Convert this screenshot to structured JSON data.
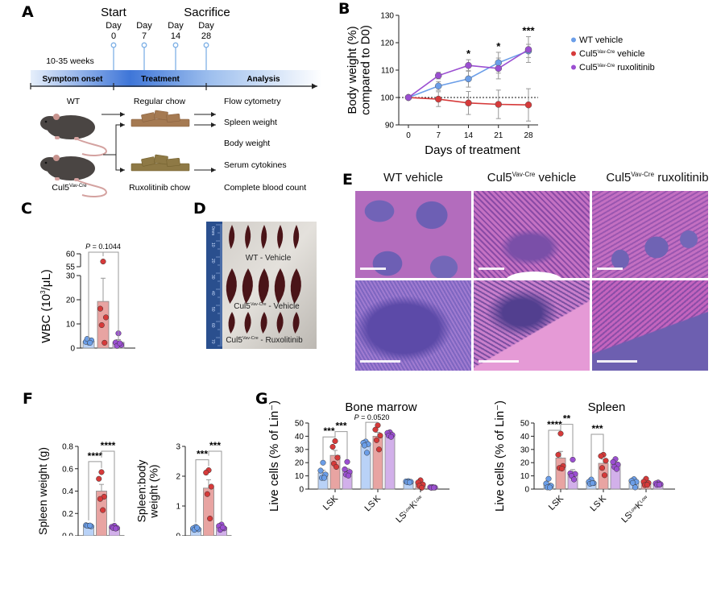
{
  "panels": {
    "A": {
      "label": "A",
      "start_label": "Start",
      "sacrifice_label": "Sacrifice",
      "days": [
        {
          "word": "Day",
          "num": "0"
        },
        {
          "word": "Day",
          "num": "7"
        },
        {
          "word": "Day",
          "num": "14"
        },
        {
          "word": "Day",
          "num": "28"
        }
      ],
      "age_label": "10-35 weeks",
      "phases": [
        "Symptom onset",
        "Treatment",
        "Analysis"
      ],
      "mouse_wt": "WT",
      "mouse_ko": "Cul5",
      "mouse_ko_sup": "Vav-Cre",
      "chow_regular": "Regular chow",
      "chow_rux": "Ruxolitinib chow",
      "analyses": [
        "Flow cytometry",
        "Spleen weight",
        "Body weight",
        "Serum cytokines",
        "Complete blood count"
      ],
      "colors": {
        "timeline_dark": "#3d73d6",
        "timeline_light": "#eaf1fc",
        "pin": "#7fb1e6",
        "mouse": "#4a4543",
        "tail": "#d4a2a0",
        "chow_regular": "#a57a52",
        "chow_rux": "#8e7945"
      }
    },
    "B": {
      "label": "B"
    },
    "C": {
      "label": "C"
    },
    "D": {
      "label": "D",
      "captions": [
        {
          "main": "WT - Vehicle",
          "sup": ""
        },
        {
          "main": "Cul5",
          "sup": "Vav-Cre",
          "rest": " - Vehicle"
        },
        {
          "main": "Cul5",
          "sup": "Vav-Cre",
          "rest": " - Ruxolitinib"
        }
      ],
      "ruler_ticks": [
        "0mm",
        "10",
        "20",
        "30",
        "40",
        "50",
        "60",
        "70"
      ]
    },
    "E": {
      "label": "E",
      "columns": [
        {
          "main": "WT vehicle",
          "sup": "",
          "rest": ""
        },
        {
          "main": "Cul5",
          "sup": "Vav-Cre",
          "rest": " vehicle"
        },
        {
          "main": "Cul5",
          "sup": "Vav-Cre",
          "rest": " ruxolitinib"
        }
      ]
    },
    "F": {
      "label": "F"
    },
    "G": {
      "label": "G",
      "titles": [
        "Bone marrow",
        "Spleen"
      ]
    }
  },
  "colors": {
    "wt": "#6b9ee8",
    "wt_bar": "#b9d2f7",
    "ko": "#d63a3a",
    "ko_bar": "#e8a4a2",
    "rux": "#9b4fd1",
    "rux_bar": "#d2b0ea",
    "errbar": "#999999"
  },
  "chart_data": [
    {
      "id": "B",
      "type": "line",
      "title": "",
      "xlabel": "Days of treatment",
      "ylabel": "Body weight (%) compared to D0)",
      "ylabel_lines": [
        "Body weight (%)",
        "compared to D0)"
      ],
      "x": [
        0,
        7,
        14,
        21,
        28
      ],
      "xticks": [
        "0",
        "7",
        "14",
        "21",
        "28"
      ],
      "ylim": [
        90,
        130
      ],
      "yticks": [
        90,
        100,
        110,
        120,
        130
      ],
      "reference_line": 100,
      "legend_position": "right",
      "series": [
        {
          "name": "WT vehicle",
          "name_main": "WT vehicle",
          "sup": "",
          "rest": "",
          "color_key": "wt",
          "values": [
            100,
            104.2,
            106.8,
            112.7,
            117.0
          ],
          "err": [
            0,
            1.6,
            3.0,
            3.8,
            2.4
          ]
        },
        {
          "name": "Cul5Vav-Cre vehicle",
          "name_main": "Cul5",
          "sup": "Vav-Cre",
          "rest": " vehicle",
          "color_key": "ko",
          "values": [
            100,
            99.4,
            98.0,
            97.5,
            97.3
          ],
          "err": [
            0,
            2.7,
            4.2,
            5.2,
            5.9
          ]
        },
        {
          "name": "Cul5Vav-Cre ruxolitinib",
          "name_main": "Cul5",
          "sup": "Vav-Cre",
          "rest": " ruxolitinib",
          "color_key": "rux",
          "values": [
            100,
            108.0,
            111.7,
            110.6,
            117.5
          ],
          "err": [
            0,
            1.2,
            2.1,
            3.8,
            4.7
          ]
        }
      ],
      "annotations": [
        {
          "x": 14,
          "text": "*"
        },
        {
          "x": 21,
          "text": "*"
        },
        {
          "x": 28,
          "text": "***"
        }
      ]
    },
    {
      "id": "C",
      "type": "bar",
      "ylabel": "WBC (10³/μL)",
      "ylabel_parts": {
        "pre": "WBC (10",
        "sup": "3",
        "post": "/μL)"
      },
      "ylim": [
        0,
        60
      ],
      "axis_break": [
        30,
        55
      ],
      "yticks": [
        0,
        10,
        20,
        30,
        55,
        60
      ],
      "categories": [
        "WT vehicle",
        "Cul5Vav-Cre vehicle",
        "Cul5Vav-Cre ruxolitinib"
      ],
      "bars": [
        {
          "color_key": "wt",
          "mean": 2.8,
          "err": 0.5,
          "points": [
            2.3,
            2.6,
            3.2,
            3.8,
            2.2
          ]
        },
        {
          "color_key": "ko",
          "mean": 19.3,
          "err": 9.6,
          "points": [
            57,
            16.3,
            12.7,
            9.5,
            2.2
          ]
        },
        {
          "color_key": "rux",
          "mean": 2.4,
          "err": 1.1,
          "points": [
            6.1,
            2.3,
            1.3,
            0.9,
            2.0
          ]
        }
      ],
      "annotations": [
        {
          "from": 0,
          "to": 2,
          "mid": 1,
          "text": "P = 0.1044"
        }
      ]
    },
    {
      "id": "F1",
      "type": "bar",
      "ylabel": "Spleen weight (g)",
      "ylim": [
        0,
        0.8
      ],
      "yticks": [
        "0.0",
        "0.2",
        "0.4",
        "0.6",
        "0.8"
      ],
      "categories": [
        "WT vehicle",
        "Cul5Vav-Cre vehicle",
        "Cul5Vav-Cre ruxolitinib"
      ],
      "bars": [
        {
          "color_key": "wt",
          "mean": 0.09,
          "err": 0.005,
          "points": [
            0.09,
            0.095,
            0.085,
            0.09,
            0.092
          ]
        },
        {
          "color_key": "ko",
          "mean": 0.4,
          "err": 0.06,
          "points": [
            0.57,
            0.51,
            0.35,
            0.33,
            0.23
          ]
        },
        {
          "color_key": "rux",
          "mean": 0.075,
          "err": 0.006,
          "points": [
            0.09,
            0.08,
            0.07,
            0.07,
            0.065
          ]
        }
      ],
      "annotations": [
        {
          "from": 0,
          "to": 1,
          "text": "****"
        },
        {
          "from": 1,
          "to": 2,
          "text": "****"
        }
      ]
    },
    {
      "id": "F2",
      "type": "bar",
      "ylabel": "Spleen:body weight (%)",
      "ylabel_lines": [
        "Spleen:body",
        "weight (%)"
      ],
      "ylim": [
        0,
        3
      ],
      "yticks": [
        "0",
        "1",
        "2",
        "3"
      ],
      "categories": [
        "WT vehicle",
        "Cul5Vav-Cre vehicle",
        "Cul5Vav-Cre ruxolitinib"
      ],
      "bars": [
        {
          "color_key": "wt",
          "mean": 0.25,
          "err": 0.03,
          "points": [
            0.3,
            0.25,
            0.22,
            0.2,
            0.27
          ]
        },
        {
          "color_key": "ko",
          "mean": 1.6,
          "err": 0.28,
          "points": [
            2.2,
            2.12,
            1.65,
            1.4,
            0.58
          ]
        },
        {
          "color_key": "rux",
          "mean": 0.28,
          "err": 0.05,
          "points": [
            0.38,
            0.33,
            0.25,
            0.2,
            0.28
          ]
        }
      ],
      "annotations": [
        {
          "from": 0,
          "to": 1,
          "text": "***"
        },
        {
          "from": 1,
          "to": 2,
          "text": "***"
        }
      ]
    },
    {
      "id": "G1",
      "type": "bar",
      "title": "Bone marrow",
      "ylabel": "Live cells (% of Lin⁻)",
      "ylim": [
        0,
        50
      ],
      "yticks": [
        0,
        10,
        20,
        30,
        40,
        50
      ],
      "categories": [
        "LSK",
        "LS⁻K",
        "LSLowKLow"
      ],
      "category_labels": [
        {
          "parts": [
            {
              "t": "LSK",
              "sup": false
            }
          ]
        },
        {
          "parts": [
            {
              "t": "LS",
              "sup": false
            },
            {
              "t": "-",
              "sup": true
            },
            {
              "t": "K",
              "sup": false
            }
          ]
        },
        {
          "parts": [
            {
              "t": "LS",
              "sup": false
            },
            {
              "t": "Low",
              "sup": true
            },
            {
              "t": "K",
              "sup": false
            },
            {
              "t": "Low",
              "sup": true
            }
          ]
        }
      ],
      "groups": [
        [
          {
            "color_key": "wt",
            "mean": 12.2,
            "err": 2.0,
            "points": [
              20,
              14,
              11,
              8.5,
              8.5
            ]
          },
          {
            "color_key": "ko",
            "mean": 25.5,
            "err": 3.8,
            "points": [
              36.3,
              32,
              23.8,
              19.3,
              16.8
            ]
          },
          {
            "color_key": "rux",
            "mean": 13.9,
            "err": 1.8,
            "points": [
              20.6,
              15,
              13,
              11,
              10.2
            ]
          }
        ],
        [
          {
            "color_key": "wt",
            "mean": 33.0,
            "err": 1.5,
            "points": [
              36,
              35,
              34,
              33,
              27.5
            ]
          },
          {
            "color_key": "ko",
            "mean": 40.0,
            "err": 3.0,
            "points": [
              48.3,
              45,
              40.5,
              37,
              30
            ]
          },
          {
            "color_key": "rux",
            "mean": 41.5,
            "err": 0.8,
            "points": [
              43,
              42.5,
              41,
              40.5,
              39.5
            ]
          }
        ],
        [
          {
            "color_key": "wt",
            "mean": 5.5,
            "err": 0.3,
            "points": [
              6,
              5.8,
              5.5,
              5.2,
              5
            ]
          },
          {
            "color_key": "ko",
            "mean": 3.8,
            "err": 1.0,
            "points": [
              6.7,
              5,
              3.5,
              2.5,
              1
            ]
          },
          {
            "color_key": "rux",
            "mean": 1.3,
            "err": 0.2,
            "points": [
              1.6,
              1.4,
              1.2,
              1,
              1.1
            ]
          }
        ]
      ],
      "annotations": [
        {
          "group": 0,
          "from": 0,
          "to": 1,
          "text": "***"
        },
        {
          "group": 0,
          "from": 1,
          "to": 2,
          "text": "***"
        },
        {
          "group": 1,
          "from": 0,
          "to": 1,
          "text": "P = 0.0520"
        }
      ]
    },
    {
      "id": "G2",
      "type": "bar",
      "title": "Spleen",
      "ylabel": "Live cells (% of Lin⁻)",
      "ylim": [
        0,
        50
      ],
      "yticks": [
        0,
        10,
        20,
        30,
        40,
        50
      ],
      "categories": [
        "LSK",
        "LS⁻K",
        "LSLowKLow"
      ],
      "category_labels": [
        {
          "parts": [
            {
              "t": "LSK",
              "sup": false
            }
          ]
        },
        {
          "parts": [
            {
              "t": "LS",
              "sup": false
            },
            {
              "t": "-",
              "sup": true
            },
            {
              "t": "K",
              "sup": false
            }
          ]
        },
        {
          "parts": [
            {
              "t": "LS",
              "sup": false
            },
            {
              "t": "Low",
              "sup": true
            },
            {
              "t": "K",
              "sup": false
            },
            {
              "t": "Low",
              "sup": true
            }
          ]
        }
      ],
      "groups": [
        [
          {
            "color_key": "wt",
            "mean": 3.4,
            "err": 1.2,
            "points": [
              7.8,
              4.2,
              2.5,
              1.3,
              1.2
            ]
          },
          {
            "color_key": "ko",
            "mean": 23.5,
            "err": 5.0,
            "points": [
              42,
              26,
              17.5,
              16,
              15.5
            ]
          },
          {
            "color_key": "rux",
            "mean": 12.2,
            "err": 2.6,
            "points": [
              22.3,
              12,
              11.5,
              10,
              7.3
            ]
          }
        ],
        [
          {
            "color_key": "wt",
            "mean": 5.0,
            "err": 0.8,
            "points": [
              7.3,
              5.5,
              4.5,
              4,
              4.5
            ]
          },
          {
            "color_key": "ko",
            "mean": 19.5,
            "err": 3.2,
            "points": [
              26,
              25,
              21.5,
              16,
              10.5
            ]
          },
          {
            "color_key": "rux",
            "mean": 18.8,
            "err": 1.4,
            "points": [
              22.7,
              20.5,
              18.6,
              16.8,
              15.2
            ]
          }
        ],
        [
          {
            "color_key": "wt",
            "mean": 5.0,
            "err": 1.0,
            "points": [
              7.5,
              6.3,
              5.5,
              4.7,
              1.3
            ]
          },
          {
            "color_key": "ko",
            "mean": 4.8,
            "err": 0.9,
            "points": [
              7.8,
              5.6,
              4.7,
              3.0,
              3.2
            ]
          },
          {
            "color_key": "rux",
            "mean": 3.8,
            "err": 0.5,
            "points": [
              5,
              4.3,
              3.7,
              3.2,
              3.3
            ]
          }
        ]
      ],
      "annotations": [
        {
          "group": 0,
          "from": 0,
          "to": 1,
          "text": "****"
        },
        {
          "group": 0,
          "from": 1,
          "to": 2,
          "text": "**"
        },
        {
          "group": 1,
          "from": 0,
          "to": 1,
          "text": "***"
        }
      ]
    }
  ]
}
